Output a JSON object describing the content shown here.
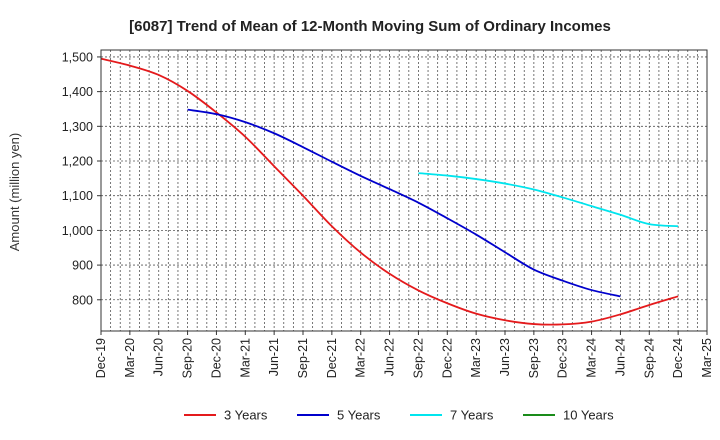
{
  "chart_data": {
    "type": "line",
    "title": "[6087]  Trend of Mean of 12-Month Moving Sum of Ordinary Incomes",
    "xlabel": "",
    "ylabel": "Amount (million yen)",
    "ylim": [
      710,
      1520
    ],
    "yticks": [
      800,
      900,
      1000,
      1100,
      1200,
      1300,
      1400,
      1500
    ],
    "ytick_labels": [
      "800",
      "900",
      "1,000",
      "1,100",
      "1,200",
      "1,300",
      "1,400",
      "1,500"
    ],
    "categories": [
      "Dec-19",
      "Mar-20",
      "Jun-20",
      "Sep-20",
      "Dec-20",
      "Mar-21",
      "Jun-21",
      "Sep-21",
      "Dec-21",
      "Mar-22",
      "Jun-22",
      "Sep-22",
      "Dec-22",
      "Mar-23",
      "Jun-23",
      "Sep-23",
      "Dec-23",
      "Mar-24",
      "Jun-24",
      "Sep-24",
      "Dec-24",
      "Mar-25"
    ],
    "grid": true,
    "legend_position": "bottom",
    "series": [
      {
        "name": "3 Years",
        "color": "#e41a1c",
        "values": [
          1495,
          1475,
          1448,
          1402,
          1340,
          1270,
          1185,
          1100,
          1012,
          936,
          875,
          827,
          790,
          760,
          741,
          730,
          729,
          737,
          758,
          785,
          810,
          null
        ]
      },
      {
        "name": "5 Years",
        "color": "#0000cc",
        "values": [
          null,
          null,
          null,
          1348,
          1335,
          1312,
          1280,
          1240,
          1198,
          1157,
          1119,
          1080,
          1035,
          988,
          937,
          887,
          855,
          828,
          810,
          null,
          null,
          null
        ]
      },
      {
        "name": "7 Years",
        "color": "#00e5ee",
        "values": [
          null,
          null,
          null,
          null,
          null,
          null,
          null,
          null,
          null,
          null,
          null,
          1165,
          1158,
          1148,
          1135,
          1118,
          1095,
          1070,
          1045,
          1018,
          1012,
          null
        ]
      },
      {
        "name": "10 Years",
        "color": "#1a8c1a",
        "values": [
          null,
          null,
          null,
          null,
          null,
          null,
          null,
          null,
          null,
          null,
          null,
          null,
          null,
          null,
          null,
          null,
          null,
          null,
          null,
          null,
          null,
          null
        ]
      }
    ]
  }
}
